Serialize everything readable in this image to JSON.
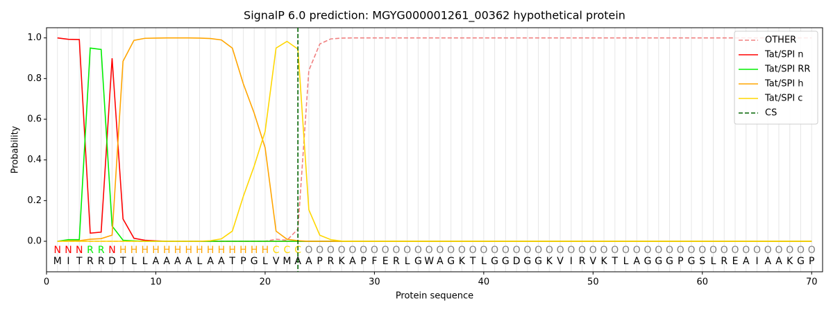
{
  "chart_data": {
    "type": "line",
    "title": "SignalP 6.0 prediction: MGYG000001261_00362 hypothetical protein",
    "xlabel": "Protein sequence",
    "ylabel": "Probability",
    "x": [
      1,
      2,
      3,
      4,
      5,
      6,
      7,
      8,
      9,
      10,
      11,
      12,
      13,
      14,
      15,
      16,
      17,
      18,
      19,
      20,
      21,
      22,
      23,
      24,
      25,
      26,
      27,
      28,
      29,
      30,
      31,
      32,
      33,
      34,
      35,
      36,
      37,
      38,
      39,
      40,
      41,
      42,
      43,
      44,
      45,
      46,
      47,
      48,
      49,
      50,
      51,
      52,
      53,
      54,
      55,
      56,
      57,
      58,
      59,
      60,
      61,
      62,
      63,
      64,
      65,
      66,
      67,
      68,
      69,
      70
    ],
    "series": [
      {
        "name": "OTHER",
        "color": "#f08080",
        "linestyle": "dashed",
        "values": [
          0,
          0,
          0,
          0,
          0,
          0,
          0,
          0,
          0,
          0,
          0,
          0,
          0,
          0,
          0,
          0,
          0,
          0,
          0,
          0,
          0.01,
          0.005,
          0.06,
          0.84,
          0.97,
          0.995,
          0.999,
          1,
          1,
          1,
          1,
          1,
          1,
          1,
          1,
          1,
          1,
          1,
          1,
          1,
          1,
          1,
          1,
          1,
          1,
          1,
          1,
          1,
          1,
          1,
          1,
          1,
          1,
          1,
          1,
          1,
          1,
          1,
          1,
          1,
          1,
          1,
          1,
          1,
          1,
          1,
          1,
          1,
          1,
          1
        ]
      },
      {
        "name": "Tat/SPI n",
        "color": "#ff0000",
        "linestyle": "solid",
        "values": [
          1.0,
          0.993,
          0.992,
          0.04,
          0.045,
          0.9,
          0.11,
          0.015,
          0.005,
          0.002,
          0,
          0,
          0,
          0,
          0,
          0,
          0,
          0,
          0,
          0,
          0,
          0,
          0,
          0,
          0,
          0,
          0,
          0,
          0,
          0,
          0,
          0,
          0,
          0,
          0,
          0,
          0,
          0,
          0,
          0,
          0,
          0,
          0,
          0,
          0,
          0,
          0,
          0,
          0,
          0,
          0,
          0,
          0,
          0,
          0,
          0,
          0,
          0,
          0,
          0,
          0,
          0,
          0,
          0,
          0,
          0,
          0,
          0,
          0,
          0
        ]
      },
      {
        "name": "Tat/SPI RR",
        "color": "#00ee00",
        "linestyle": "solid",
        "values": [
          0,
          0.008,
          0.008,
          0.95,
          0.943,
          0.075,
          0.005,
          0.002,
          0,
          0,
          0,
          0,
          0,
          0,
          0,
          0,
          0,
          0,
          0,
          0,
          0,
          0,
          0,
          0,
          0,
          0,
          0,
          0,
          0,
          0,
          0,
          0,
          0,
          0,
          0,
          0,
          0,
          0,
          0,
          0,
          0,
          0,
          0,
          0,
          0,
          0,
          0,
          0,
          0,
          0,
          0,
          0,
          0,
          0,
          0,
          0,
          0,
          0,
          0,
          0,
          0,
          0,
          0,
          0,
          0,
          0,
          0,
          0,
          0,
          0
        ]
      },
      {
        "name": "Tat/SPI h",
        "color": "#ffa500",
        "linestyle": "solid",
        "values": [
          0,
          0.002,
          0.003,
          0.01,
          0.013,
          0.03,
          0.885,
          0.988,
          0.998,
          0.999,
          1,
          1,
          1,
          0.999,
          0.997,
          0.99,
          0.95,
          0.775,
          0.63,
          0.46,
          0.05,
          0.01,
          0.003,
          0,
          0,
          0,
          0,
          0,
          0,
          0,
          0,
          0,
          0,
          0,
          0,
          0,
          0,
          0,
          0,
          0,
          0,
          0,
          0,
          0,
          0,
          0,
          0,
          0,
          0,
          0,
          0,
          0,
          0,
          0,
          0,
          0,
          0,
          0,
          0,
          0,
          0,
          0,
          0,
          0,
          0,
          0,
          0,
          0,
          0,
          0
        ]
      },
      {
        "name": "Tat/SPI c",
        "color": "#ffd700",
        "linestyle": "solid",
        "values": [
          0,
          0,
          0,
          0,
          0,
          0,
          0,
          0,
          0,
          0,
          0,
          0,
          0,
          0,
          0.003,
          0.012,
          0.05,
          0.22,
          0.37,
          0.54,
          0.95,
          0.983,
          0.945,
          0.155,
          0.03,
          0.008,
          0.001,
          0,
          0,
          0,
          0,
          0,
          0,
          0,
          0,
          0,
          0,
          0,
          0,
          0,
          0,
          0,
          0,
          0,
          0,
          0,
          0,
          0,
          0,
          0,
          0,
          0,
          0,
          0,
          0,
          0,
          0,
          0,
          0,
          0,
          0,
          0,
          0,
          0,
          0,
          0,
          0,
          0,
          0,
          0
        ]
      }
    ],
    "cs": {
      "name": "CS",
      "x": 23,
      "color": "#006400"
    },
    "sequence": [
      "M",
      "I",
      "T",
      "R",
      "R",
      "D",
      "T",
      "L",
      "L",
      "A",
      "A",
      "A",
      "A",
      "L",
      "A",
      "A",
      "T",
      "P",
      "G",
      "L",
      "V",
      "M",
      "A",
      "A",
      "P",
      "R",
      "K",
      "A",
      "P",
      "F",
      "E",
      "R",
      "L",
      "G",
      "W",
      "A",
      "G",
      "K",
      "T",
      "L",
      "G",
      "G",
      "D",
      "G",
      "G",
      "K",
      "V",
      "I",
      "R",
      "V",
      "K",
      "T",
      "L",
      "A",
      "G",
      "G",
      "G",
      "P",
      "G",
      "S",
      "L",
      "R",
      "E",
      "A",
      "I",
      "A",
      "A",
      "K",
      "G",
      "P"
    ],
    "labels": [
      "N",
      "N",
      "N",
      "R",
      "R",
      "N",
      "H",
      "H",
      "H",
      "H",
      "H",
      "H",
      "H",
      "H",
      "H",
      "H",
      "H",
      "H",
      "H",
      "H",
      "C",
      "C",
      "C",
      "O",
      "O",
      "O",
      "O",
      "O",
      "O",
      "O",
      "O",
      "O",
      "O",
      "O",
      "O",
      "O",
      "O",
      "O",
      "O",
      "O",
      "O",
      "O",
      "O",
      "O",
      "O",
      "O",
      "O",
      "O",
      "O",
      "O",
      "O",
      "O",
      "O",
      "O",
      "O",
      "O",
      "O",
      "O",
      "O",
      "O",
      "O",
      "O",
      "O",
      "O",
      "O",
      "O",
      "O",
      "O",
      "O",
      "O"
    ],
    "label_colors": {
      "N": "#ff0000",
      "R": "#00ee00",
      "H": "#ffa500",
      "C": "#ffd700",
      "O": "#808080"
    },
    "xlim": [
      0,
      71
    ],
    "ylim": [
      -0.15,
      1.05
    ],
    "xticks": [
      0,
      10,
      20,
      30,
      40,
      50,
      60,
      70
    ],
    "yticks": [
      {
        "value": 0,
        "label": "0.0"
      },
      {
        "value": 0.2,
        "label": "0.2"
      },
      {
        "value": 0.4,
        "label": "0.4"
      },
      {
        "value": 0.6,
        "label": "0.6"
      },
      {
        "value": 0.8,
        "label": "0.8"
      },
      {
        "value": 1,
        "label": "1.0"
      }
    ],
    "legend": "upper right"
  }
}
